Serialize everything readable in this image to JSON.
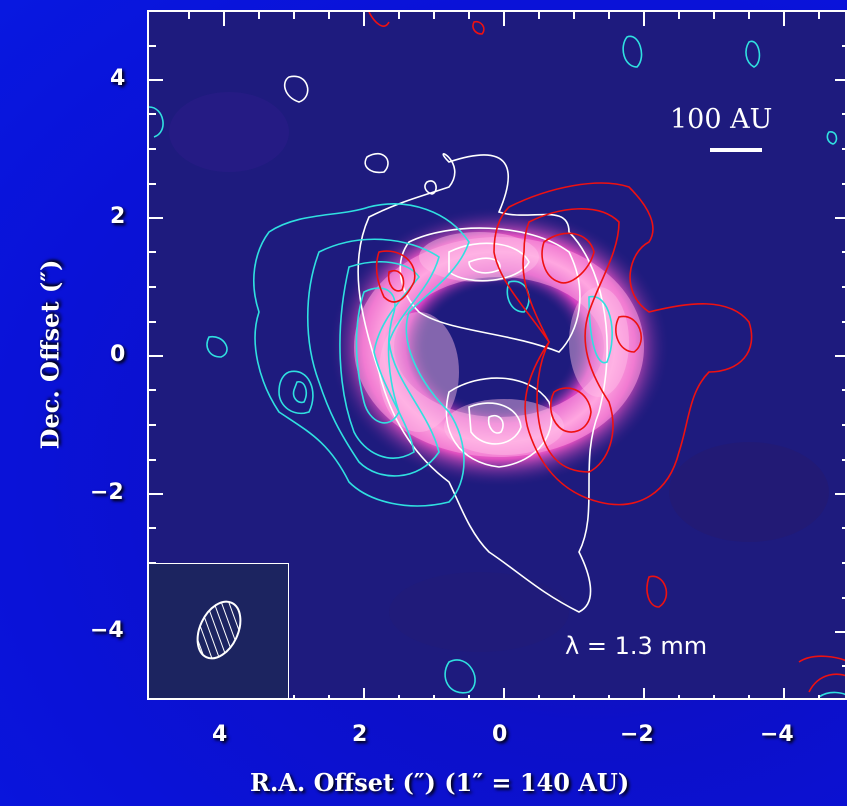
{
  "figure": {
    "xlabel": "R.A. Offset (″)  (1″ = 140 AU)",
    "ylabel": "Dec. Offset (″)",
    "x_ticks": [
      "4",
      "2",
      "0",
      "−2",
      "−4"
    ],
    "y_ticks": [
      "4",
      "2",
      "0",
      "−2",
      "−4"
    ],
    "scalebar_label": "100 AU",
    "wavelength_label": "λ = 1.3 mm",
    "contour_colors": {
      "white": "#ffffff",
      "cyan": "#30e0e0",
      "red": "#ee1111"
    },
    "ring_color": "#ff66cc",
    "background_color": "#1c1a7a",
    "beam_icon": "hatched-ellipse"
  }
}
